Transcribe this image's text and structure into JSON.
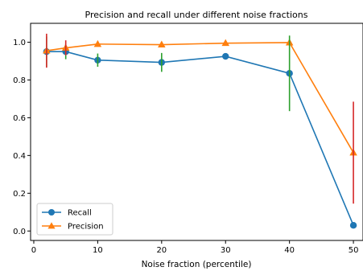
{
  "chart_data": {
    "type": "line",
    "title": "Precision and recall under different noise fractions",
    "xlabel": "Noise fraction (percentile)",
    "ylabel": "",
    "xlim": [
      -0.5,
      51.5
    ],
    "ylim": [
      -0.05,
      1.1
    ],
    "xticks": [
      "0",
      "10",
      "20",
      "30",
      "40",
      "50"
    ],
    "yticks": [
      "0.0",
      "0.2",
      "0.4",
      "0.6",
      "0.8",
      "1.0"
    ],
    "x": [
      2,
      5,
      10,
      20,
      30,
      40,
      50
    ],
    "grid": false,
    "legend_position": "lower-left",
    "series": [
      {
        "name": "Recall",
        "color": "#1f77b4",
        "marker": "circle",
        "values": [
          0.95,
          0.95,
          0.905,
          0.893,
          0.925,
          0.835,
          0.03
        ],
        "error_color": "#2ca02c",
        "errors": [
          0.08,
          0.04,
          0.035,
          0.05,
          0.0,
          0.2,
          0.0
        ]
      },
      {
        "name": "Precision",
        "color": "#ff7f0e",
        "marker": "triangle",
        "values": [
          0.955,
          0.97,
          0.99,
          0.987,
          0.995,
          0.998,
          0.415
        ],
        "error_color": "#d62728",
        "errors": [
          0.09,
          0.04,
          0.0,
          0.0,
          0.0,
          0.0,
          0.27
        ]
      }
    ]
  }
}
